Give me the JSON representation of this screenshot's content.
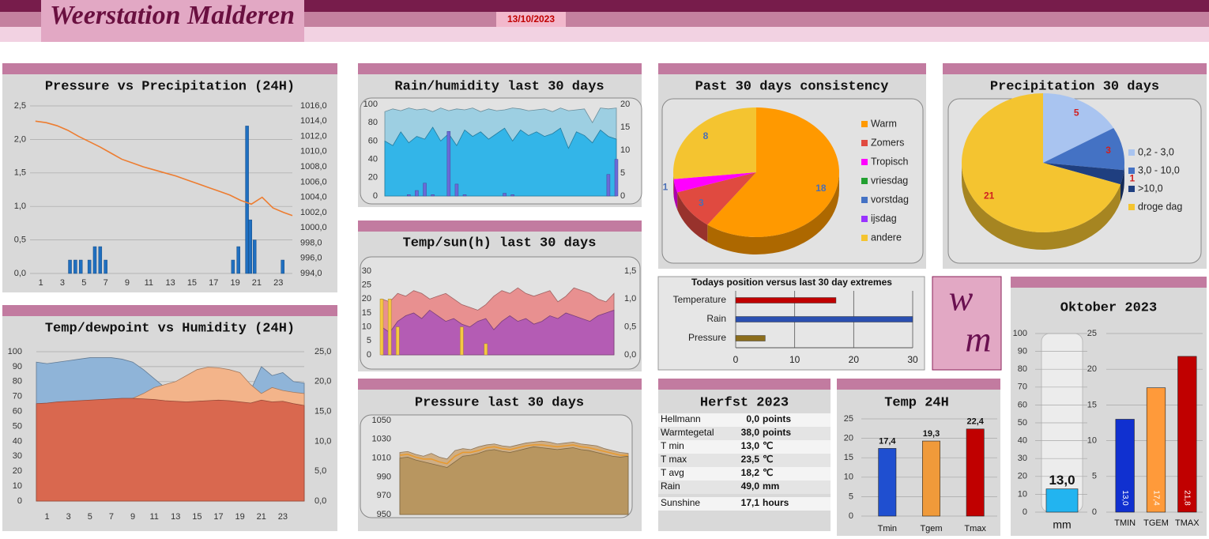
{
  "header": {
    "title": "Weerstation Malderen",
    "date": "13/10/2023"
  },
  "logo": {
    "top": "w",
    "bottom": "m"
  },
  "table": {
    "title": "Herfst 2023",
    "rows": [
      [
        "Hellmann",
        "0,0",
        "points"
      ],
      [
        "Warmtegetal",
        "38,0",
        "points"
      ],
      [
        "T min",
        "13,0",
        "℃"
      ],
      [
        "T max",
        "23,5",
        "℃"
      ],
      [
        "T avg",
        "18,2",
        "℃"
      ],
      [
        "Rain",
        "49,0",
        "mm"
      ],
      [
        "Sunshine",
        "17,1",
        "hours"
      ]
    ]
  },
  "chart_data": [
    {
      "type": "combo",
      "title": "Pressure vs Precipitation (24H)",
      "xlim": [
        0,
        24.3
      ],
      "xticks": [
        1,
        3,
        5,
        7,
        9,
        11,
        13,
        15,
        17,
        19,
        21,
        23
      ],
      "ylim": [
        0,
        2.5
      ],
      "yticks": [
        {
          "value": 0,
          "label": "0,0"
        },
        {
          "value": 0.5,
          "label": "0,5"
        },
        {
          "value": 1,
          "label": "1,0"
        },
        {
          "value": 1.5,
          "label": "1,5"
        },
        {
          "value": 2,
          "label": "2,0"
        },
        {
          "value": 2.5,
          "label": "2,5"
        }
      ],
      "y2lim": [
        994,
        1016
      ],
      "y2ticks": [
        {
          "value": 994,
          "label": "994,0"
        },
        {
          "value": 996,
          "label": "996,0"
        },
        {
          "value": 998,
          "label": "998,0"
        },
        {
          "value": 1000,
          "label": "1000,0"
        },
        {
          "value": 1002,
          "label": "1002,0"
        },
        {
          "value": 1004,
          "label": "1004,0"
        },
        {
          "value": 1006,
          "label": "1006,0"
        },
        {
          "value": 1008,
          "label": "1008,0"
        },
        {
          "value": 1010,
          "label": "1010,0"
        },
        {
          "value": 1012,
          "label": "1012,0"
        },
        {
          "value": 1014,
          "label": "1014,0"
        },
        {
          "value": 1016,
          "label": "1016,0"
        }
      ],
      "grid": true,
      "series": [
        {
          "kind": "bar",
          "color": "#1f6fc0",
          "x": [
            3.7,
            4.2,
            4.7,
            5.5,
            6,
            6.5,
            7,
            18.8,
            19.3,
            20.1,
            20.4,
            20.8,
            23.4
          ],
          "values": [
            0.2,
            0.2,
            0.2,
            0.2,
            0.4,
            0.4,
            0.2,
            0.2,
            0.4,
            2.2,
            0.8,
            0.5,
            0.2
          ]
        },
        {
          "kind": "line",
          "color": "#ed7d31",
          "axis": "y2",
          "x": [
            0.5,
            1.5,
            2.5,
            3.5,
            4.5,
            5.5,
            6.5,
            7.5,
            8.5,
            9.5,
            10.5,
            11.5,
            12.5,
            13.5,
            14.5,
            15.5,
            16.5,
            17.5,
            18.5,
            19.5,
            20.5,
            21.5,
            22.5,
            23.5,
            24.3
          ],
          "values": [
            1014.0,
            1013.8,
            1013.4,
            1012.8,
            1012.0,
            1011.3,
            1010.6,
            1009.8,
            1009.0,
            1008.5,
            1008.0,
            1007.6,
            1007.2,
            1006.8,
            1006.3,
            1005.8,
            1005.3,
            1004.8,
            1004.3,
            1003.6,
            1003.1,
            1004.0,
            1002.6,
            1002.0,
            1001.6
          ]
        }
      ]
    },
    {
      "type": "combo",
      "title": "Temp/dewpoint vs Humidity (24H)",
      "xlim": [
        0,
        25
      ],
      "xticks": [
        1,
        3,
        5,
        7,
        9,
        11,
        13,
        15,
        17,
        19,
        21,
        23
      ],
      "x": [
        0,
        1,
        2,
        3,
        4,
        5,
        6,
        7,
        8,
        9,
        10,
        11,
        12,
        13,
        14,
        15,
        16,
        17,
        18,
        19,
        20,
        21,
        22,
        23,
        24,
        25
      ],
      "ylim": [
        0,
        100
      ],
      "yticks": [
        0,
        10,
        20,
        30,
        40,
        50,
        60,
        70,
        80,
        90,
        100
      ],
      "y2lim": [
        0,
        25
      ],
      "y2ticks": [
        {
          "value": 0,
          "label": "0,0"
        },
        {
          "value": 5,
          "label": "5,0"
        },
        {
          "value": 10,
          "label": "10,0"
        },
        {
          "value": 15,
          "label": "15,0"
        },
        {
          "value": 20,
          "label": "20,0"
        },
        {
          "value": 25,
          "label": "25,0"
        }
      ],
      "grid": true,
      "series": [
        {
          "kind": "area",
          "color": "#8fb4d8",
          "values": [
            93,
            92,
            93,
            94,
            95,
            96,
            96,
            96,
            95,
            93,
            88,
            82,
            76,
            72,
            70,
            70,
            71,
            72,
            72,
            73,
            74,
            90,
            84,
            86,
            80,
            79
          ]
        },
        {
          "kind": "area",
          "color": "#f3b48a",
          "axis": "y2",
          "values": [
            15.5,
            15.8,
            16.0,
            16.0,
            16.2,
            16.2,
            16.4,
            16.5,
            16.8,
            17.2,
            18.0,
            19.0,
            19.5,
            20.0,
            21.0,
            22.0,
            22.4,
            22.3,
            22.0,
            21.5,
            19.5,
            18.0,
            19.0,
            18.5,
            18.2,
            18.0
          ]
        },
        {
          "kind": "area",
          "color": "#d9684f",
          "axis": "y2",
          "values": [
            16.3,
            16.4,
            16.6,
            16.7,
            16.8,
            16.9,
            17.0,
            17.1,
            17.2,
            17.2,
            17.1,
            17.0,
            16.8,
            16.7,
            16.6,
            16.7,
            16.8,
            16.9,
            16.8,
            16.6,
            16.4,
            16.9,
            16.6,
            16.7,
            16.3,
            16.0
          ]
        }
      ]
    },
    {
      "type": "combo",
      "title": "Rain/humidity last 30 days",
      "xlim": [
        1,
        30
      ],
      "x": [
        1,
        2,
        3,
        4,
        5,
        6,
        7,
        8,
        9,
        10,
        11,
        12,
        13,
        14,
        15,
        16,
        17,
        18,
        19,
        20,
        21,
        22,
        23,
        24,
        25,
        26,
        27,
        28,
        29,
        30
      ],
      "ylim": [
        0,
        100
      ],
      "yticks": [
        0,
        20,
        40,
        60,
        80,
        100
      ],
      "y2lim": [
        0,
        20
      ],
      "y2ticks": [
        0,
        5,
        10,
        15,
        20
      ],
      "grid": false,
      "series": [
        {
          "kind": "area",
          "color": "#9dcfe2",
          "values": [
            92,
            95,
            93,
            96,
            94,
            95,
            92,
            96,
            93,
            95,
            94,
            96,
            92,
            95,
            93,
            94,
            96,
            95,
            93,
            94,
            95,
            92,
            96,
            93,
            94,
            95,
            80,
            96,
            95,
            96
          ]
        },
        {
          "kind": "area",
          "color": "#33b5e8",
          "values": [
            60,
            55,
            70,
            58,
            65,
            62,
            75,
            60,
            68,
            55,
            72,
            65,
            70,
            62,
            68,
            74,
            60,
            72,
            66,
            70,
            65,
            68,
            74,
            52,
            70,
            66,
            58,
            72,
            65,
            62
          ]
        },
        {
          "kind": "bar",
          "color": "#6a6ad8",
          "axis": "y2",
          "values": [
            0,
            0,
            0,
            0.3,
            1.2,
            2.8,
            0.3,
            0,
            14.1,
            2.6,
            0.3,
            0,
            0,
            0,
            0,
            0.6,
            0.3,
            0,
            0,
            0,
            0,
            0,
            0,
            0,
            0,
            0,
            0,
            0,
            4.7,
            8.0
          ]
        }
      ]
    },
    {
      "type": "combo",
      "title": "Temp/sun(h) last 30 days",
      "xlim": [
        1,
        30
      ],
      "x": [
        1,
        2,
        3,
        4,
        5,
        6,
        7,
        8,
        9,
        10,
        11,
        12,
        13,
        14,
        15,
        16,
        17,
        18,
        19,
        20,
        21,
        22,
        23,
        24,
        25,
        26,
        27,
        28,
        29,
        30
      ],
      "ylim": [
        0,
        30
      ],
      "yticks": [
        0,
        5,
        10,
        15,
        20,
        25,
        30
      ],
      "y2lim": [
        0,
        1.5
      ],
      "y2ticks": [
        {
          "value": 0,
          "label": "0,0"
        },
        {
          "value": 0.5,
          "label": "0,5"
        },
        {
          "value": 1,
          "label": "1,0"
        },
        {
          "value": 1.5,
          "label": "1,5"
        }
      ],
      "grid": false,
      "series": [
        {
          "kind": "area",
          "color": "#e89090",
          "values": [
            20,
            19,
            22,
            21,
            23,
            22,
            20,
            21,
            22,
            20,
            18,
            17,
            16,
            18,
            21,
            23,
            22,
            24,
            22,
            21,
            22,
            23,
            19,
            21,
            24,
            23,
            22,
            20,
            19,
            22
          ]
        },
        {
          "kind": "area",
          "color": "#b45cb4",
          "values": [
            10,
            8,
            12,
            14,
            15,
            13,
            16,
            14,
            12,
            13,
            11,
            10,
            12,
            13,
            9,
            12,
            14,
            12,
            13,
            11,
            12,
            14,
            13,
            15,
            14,
            13,
            12,
            14,
            15,
            16
          ]
        },
        {
          "kind": "bar",
          "color": "#f5c842",
          "axis": "y2",
          "values": [
            1,
            1,
            0.5,
            0,
            0,
            0,
            0,
            0,
            0,
            0,
            0.5,
            0,
            0,
            0.2,
            0,
            0,
            0,
            0,
            0,
            0,
            0,
            0,
            0,
            0,
            0,
            0,
            0,
            0,
            0,
            0
          ]
        }
      ]
    },
    {
      "type": "combo",
      "title": "Pressure last 30 days",
      "xlim": [
        1,
        30
      ],
      "x": [
        1,
        2,
        3,
        4,
        5,
        6,
        7,
        8,
        9,
        10,
        11,
        12,
        13,
        14,
        15,
        16,
        17,
        18,
        19,
        20,
        21,
        22,
        23,
        24,
        25,
        26,
        27,
        28,
        29,
        30
      ],
      "ylim": [
        950,
        1050
      ],
      "yticks": [
        950,
        970,
        990,
        1010,
        1030,
        1050
      ],
      "grid": false,
      "series": [
        {
          "kind": "area",
          "color": "#cfae84",
          "values": [
            1016,
            1017,
            1014,
            1012,
            1015,
            1011,
            1009,
            1018,
            1020,
            1019,
            1022,
            1024,
            1025,
            1023,
            1022,
            1024,
            1026,
            1027,
            1028,
            1027,
            1025,
            1026,
            1027,
            1025,
            1024,
            1023,
            1020,
            1018,
            1016,
            1015
          ]
        },
        {
          "kind": "area",
          "color": "#b89660",
          "values": [
            1010,
            1011,
            1008,
            1006,
            1004,
            1002,
            1000,
            1006,
            1012,
            1013,
            1015,
            1018,
            1019,
            1017,
            1016,
            1018,
            1020,
            1022,
            1021,
            1020,
            1019,
            1020,
            1021,
            1019,
            1018,
            1016,
            1014,
            1012,
            1011,
            1012
          ]
        },
        {
          "kind": "line",
          "color": "#e89a30",
          "values": [
            1013,
            1014,
            1011,
            1009,
            1009,
            1006,
            1004,
            1012,
            1016,
            1016,
            1018,
            1021,
            1022,
            1020,
            1019,
            1021,
            1023,
            1024,
            1024,
            1023,
            1022,
            1023,
            1024,
            1022,
            1021,
            1019,
            1017,
            1015,
            1013,
            1013
          ]
        }
      ]
    },
    {
      "type": "pie",
      "title": "Past 30 days consistency",
      "categories": [
        "Warm",
        "Zomers",
        "Tropisch",
        "vriesdag",
        "vorstdag",
        "ijsdag",
        "andere"
      ],
      "values": [
        18,
        3,
        1,
        0,
        0,
        0,
        8
      ],
      "colors": [
        "#ff9900",
        "#e04a40",
        "#ff00ff",
        "#22a030",
        "#4472c4",
        "#9933ff",
        "#f4c430"
      ],
      "label_color": "#4a6fb5"
    },
    {
      "type": "pie",
      "title": "Precipitation 30 days",
      "categories": [
        "0,2 - 3,0",
        "3,0 - 10,0",
        ">10,0",
        "droge dag"
      ],
      "values": [
        5,
        3,
        1,
        21
      ],
      "colors": [
        "#a9c4f0",
        "#4472c4",
        "#1f3f80",
        "#f4c430"
      ],
      "label_color": "#d02020"
    },
    {
      "type": "hbar",
      "title": "Todays position versus last 30 day extremes",
      "categories": [
        "Temperature",
        "Rain",
        "Pressure"
      ],
      "values": [
        17,
        30,
        5
      ],
      "colors": [
        "#c00000",
        "#2a4fb0",
        "#8b6d1c"
      ],
      "xlim": [
        0,
        30
      ],
      "xticks": [
        0,
        10,
        20,
        30
      ],
      "grid": true
    },
    {
      "type": "bar",
      "title": "Temp 24H",
      "ylim": [
        0,
        25
      ],
      "yticks": [
        0,
        5,
        10,
        15,
        20,
        25
      ],
      "grid": true,
      "series": [
        {
          "categories": [
            "Tmin",
            "Tgem",
            "Tmax"
          ],
          "values": [
            17.4,
            19.3,
            22.4
          ],
          "value_labels": [
            "17,4",
            "19,3",
            "22,4"
          ],
          "colors": [
            "#1f4fd0",
            "#f09a3a",
            "#c00000"
          ]
        }
      ]
    },
    {
      "type": "bar",
      "title": "Oktober 2023",
      "ylim": [
        0,
        100
      ],
      "yticks": [
        0,
        10,
        20,
        30,
        40,
        50,
        60,
        70,
        80,
        90,
        100
      ],
      "y2lim": [
        0,
        25
      ],
      "y2ticks": [
        0,
        5,
        10,
        15,
        20,
        25
      ],
      "grid": true,
      "series": [
        {
          "categories": [
            "mm"
          ],
          "values": [
            13.0
          ],
          "value_labels": [
            "13,0"
          ],
          "colors": [
            "#22b4f0"
          ]
        },
        {
          "axis": "y2",
          "categories": [
            "TMIN",
            "TGEM",
            "TMAX"
          ],
          "values": [
            13.0,
            17.4,
            21.8
          ],
          "value_labels": [
            "13,0",
            "17,4",
            "21,8"
          ],
          "colors": [
            "#1030d0",
            "#ff9a3a",
            "#c00000"
          ]
        }
      ]
    }
  ]
}
